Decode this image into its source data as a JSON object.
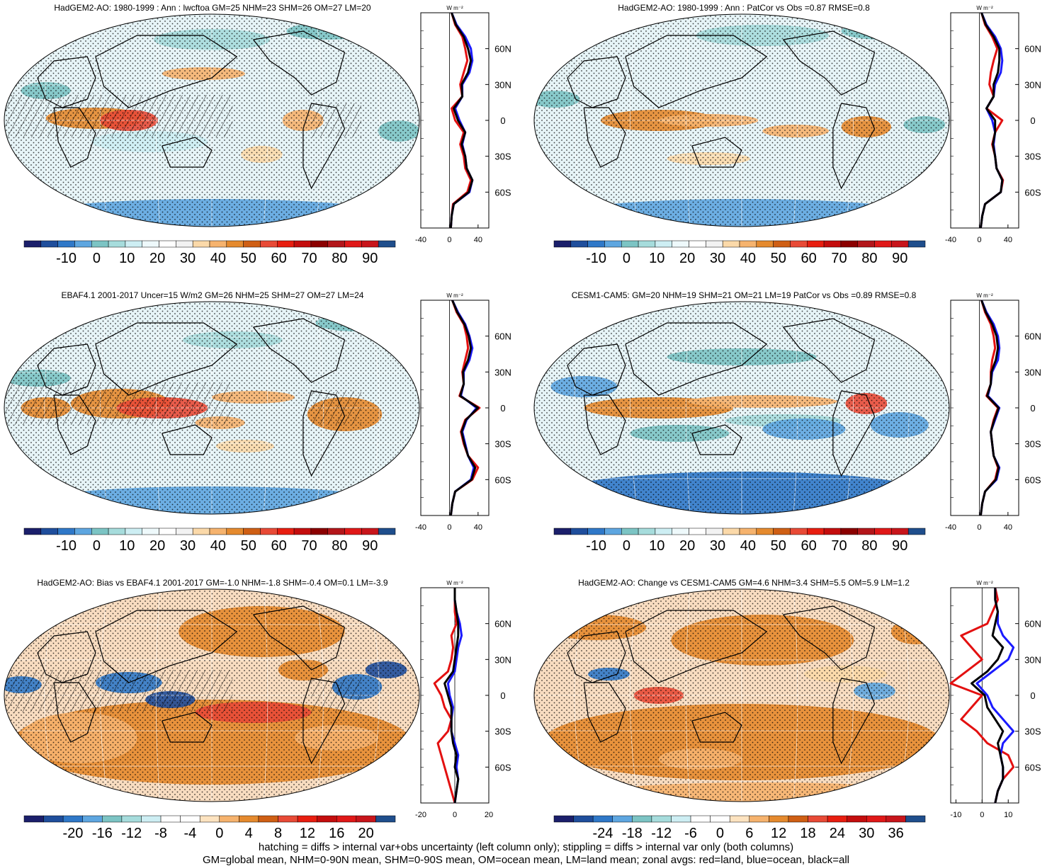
{
  "palette": {
    "main": [
      "#1b1f6b",
      "#1f4e9c",
      "#2f78c8",
      "#5ea6e0",
      "#7cc4c4",
      "#a6dcdc",
      "#cdeef3",
      "#eef9fb",
      "#ffffff",
      "#f2f2f2",
      "#fbd9a9",
      "#f6b36e",
      "#e58a2e",
      "#cf5f14",
      "#e84a36",
      "#e81e10",
      "#c40d0d",
      "#8b0000",
      "#b3161a",
      "#e01818",
      "#c8151b",
      "#1f4e8c"
    ],
    "diff": [
      "#1b1f6b",
      "#1f4e9c",
      "#2f78c8",
      "#5ea6e0",
      "#7cc4c4",
      "#a6dcdc",
      "#cdeef3",
      "#ffffff",
      "#ffffff",
      "#fde3c0",
      "#f6b36e",
      "#e58a2e",
      "#cf5f14",
      "#e84a36",
      "#e81e10",
      "#c40d0d",
      "#e01818",
      "#c8151b",
      "#1f4e8c"
    ]
  },
  "line_colors": {
    "land": "#e31010",
    "ocean": "#1a1aff",
    "all": "#000000"
  },
  "unit_label": "W m⁻²",
  "lat_ticks": [
    "60N",
    "30N",
    "0",
    "30S",
    "60S"
  ],
  "footer": {
    "line1": "hatching = diffs > internal var+obs uncertainty (left column only); stippling = diffs > internal var only (both columns)",
    "line2": "GM=global mean, NHM=0-90N mean, SHM=0-90S mean, OM=ocean mean, LM=land mean; zonal avgs: red=land, blue=ocean, black=all"
  },
  "chart_data": [
    {
      "type": "heatmap",
      "title": "HadGEM2-AO: 1980-1999 : Ann : lwcftoa GM=25 NHM=23 SHM=26 OM=27 LM=20",
      "colorbar_labels": [
        "-10",
        "0",
        "10",
        "20",
        "30",
        "40",
        "50",
        "60",
        "70",
        "80",
        "90"
      ],
      "colorbar_palette": "main",
      "hatching": true,
      "zonal_mean": {
        "xticks": [
          "-40",
          "0",
          "40"
        ],
        "xlim": [
          -40,
          55
        ],
        "ylim": [
          -90,
          90
        ],
        "lat": [
          -90,
          -80,
          -70,
          -60,
          -50,
          -40,
          -30,
          -20,
          -10,
          0,
          10,
          20,
          30,
          40,
          50,
          60,
          70,
          80,
          90
        ],
        "land": [
          2,
          3,
          5,
          25,
          30,
          22,
          20,
          15,
          20,
          8,
          3,
          18,
          15,
          20,
          25,
          22,
          18,
          8,
          3
        ],
        "ocean": [
          2,
          3,
          6,
          28,
          32,
          24,
          22,
          18,
          22,
          14,
          8,
          18,
          18,
          28,
          32,
          30,
          22,
          10,
          3
        ],
        "all": [
          2,
          3,
          6,
          27,
          32,
          24,
          22,
          17,
          22,
          12,
          6,
          18,
          17,
          26,
          30,
          26,
          20,
          9,
          3
        ]
      }
    },
    {
      "type": "heatmap",
      "title": "HadGEM2-AO: 1980-1999 : Ann : PatCor vs Obs =0.87 RMSE=0.8",
      "colorbar_labels": [
        "-10",
        "0",
        "10",
        "20",
        "30",
        "40",
        "50",
        "60",
        "70",
        "80",
        "90"
      ],
      "colorbar_palette": "main",
      "hatching": false,
      "zonal_mean": {
        "xticks": [
          "-40",
          "0",
          "40"
        ],
        "xlim": [
          -40,
          55
        ],
        "ylim": [
          -90,
          90
        ],
        "lat": [
          -90,
          -80,
          -70,
          -60,
          -50,
          -40,
          -30,
          -20,
          -10,
          0,
          10,
          20,
          30,
          40,
          50,
          60,
          70,
          80,
          90
        ],
        "land": [
          2,
          4,
          8,
          30,
          33,
          24,
          22,
          18,
          22,
          32,
          10,
          20,
          14,
          16,
          20,
          25,
          18,
          8,
          3
        ],
        "ocean": [
          2,
          4,
          8,
          30,
          32,
          24,
          22,
          20,
          22,
          18,
          10,
          20,
          22,
          30,
          32,
          30,
          22,
          10,
          3
        ],
        "all": [
          2,
          4,
          8,
          30,
          32,
          24,
          22,
          19,
          22,
          22,
          10,
          20,
          20,
          26,
          28,
          28,
          20,
          9,
          3
        ]
      }
    },
    {
      "type": "heatmap",
      "title": "EBAF4.1 2001-2017 Uncer=15 W/m2 GM=26 NHM=25 SHM=27 OM=27 LM=24",
      "colorbar_labels": [
        "-10",
        "0",
        "10",
        "20",
        "30",
        "40",
        "50",
        "60",
        "70",
        "80",
        "90"
      ],
      "colorbar_palette": "main",
      "hatching": true,
      "zonal_mean": {
        "xticks": [
          "-40",
          "0",
          "40"
        ],
        "xlim": [
          -40,
          55
        ],
        "ylim": [
          -90,
          90
        ],
        "lat": [
          -90,
          -80,
          -70,
          -60,
          -50,
          -40,
          -30,
          -20,
          -10,
          0,
          10,
          20,
          30,
          40,
          50,
          60,
          70,
          80,
          90
        ],
        "land": [
          2,
          4,
          8,
          32,
          40,
          26,
          20,
          16,
          22,
          42,
          14,
          20,
          18,
          22,
          26,
          24,
          20,
          10,
          4
        ],
        "ocean": [
          2,
          4,
          8,
          30,
          34,
          26,
          22,
          18,
          24,
          38,
          16,
          20,
          20,
          28,
          32,
          28,
          22,
          12,
          4
        ],
        "all": [
          2,
          4,
          8,
          31,
          36,
          26,
          21,
          17,
          23,
          40,
          15,
          20,
          19,
          26,
          30,
          27,
          21,
          11,
          4
        ]
      }
    },
    {
      "type": "heatmap",
      "title": "CESM1-CAM5: GM=20 NHM=19 SHM=21 OM=21 LM=19 PatCor vs Obs =0.89 RMSE=0.8",
      "colorbar_labels": [
        "-10",
        "0",
        "10",
        "20",
        "30",
        "40",
        "50",
        "60",
        "70",
        "80",
        "90"
      ],
      "colorbar_palette": "main",
      "hatching": false,
      "zonal_mean": {
        "xticks": [
          "-40",
          "0",
          "40"
        ],
        "xlim": [
          -40,
          55
        ],
        "ylim": [
          -90,
          90
        ],
        "lat": [
          -90,
          -80,
          -70,
          -60,
          -50,
          -40,
          -30,
          -20,
          -10,
          0,
          10,
          20,
          30,
          40,
          50,
          60,
          70,
          80,
          90
        ],
        "land": [
          2,
          4,
          8,
          22,
          26,
          20,
          18,
          16,
          20,
          26,
          10,
          16,
          16,
          18,
          22,
          20,
          16,
          8,
          3
        ],
        "ocean": [
          2,
          4,
          8,
          24,
          28,
          20,
          18,
          16,
          22,
          28,
          12,
          16,
          18,
          26,
          28,
          26,
          20,
          10,
          3
        ],
        "all": [
          2,
          4,
          8,
          23,
          27,
          20,
          18,
          16,
          21,
          27,
          11,
          16,
          17,
          23,
          26,
          24,
          18,
          9,
          3
        ]
      }
    },
    {
      "type": "heatmap",
      "title": "HadGEM2-AO: Bias vs EBAF4.1 2001-2017 GM=-1.0 NHM=-1.8 SHM=-0.4 OM=0.1 LM=-3.9",
      "colorbar_labels": [
        "-20",
        "-16",
        "-12",
        "-8",
        "-4",
        "0",
        "4",
        "8",
        "12",
        "16",
        "20"
      ],
      "colorbar_palette": "diff",
      "hatching": true,
      "zonal_mean": {
        "xticks": [
          "-20",
          "0",
          "20"
        ],
        "xlim": [
          -20,
          20
        ],
        "ylim": [
          -90,
          90
        ],
        "lat": [
          -90,
          -80,
          -70,
          -60,
          -50,
          -40,
          -30,
          -20,
          -10,
          0,
          10,
          20,
          30,
          40,
          50,
          60,
          70,
          80,
          90
        ],
        "land": [
          0,
          -2,
          -4,
          -6,
          -8,
          -10,
          -4,
          -2,
          -6,
          -8,
          -12,
          -4,
          -2,
          -1,
          -2,
          1,
          0,
          0,
          0
        ],
        "ocean": [
          0,
          1,
          2,
          1,
          2,
          0,
          -2,
          -2,
          -1,
          -3,
          -4,
          0,
          1,
          2,
          4,
          3,
          1,
          0,
          0
        ],
        "all": [
          0,
          1,
          2,
          0,
          1,
          -1,
          -2,
          -2,
          -2,
          -4,
          -6,
          -1,
          0,
          1,
          2,
          2,
          1,
          0,
          0
        ]
      }
    },
    {
      "type": "heatmap",
      "title": "HadGEM2-AO: Change vs CESM1-CAM5 GM=4.6 NHM=3.4 SHM=5.5 OM=5.9 LM=1.2",
      "colorbar_labels": [
        "-24",
        "-18",
        "-12",
        "-6",
        "0",
        "6",
        "12",
        "18",
        "24",
        "30",
        "36"
      ],
      "colorbar_palette": "diff",
      "hatching": false,
      "zonal_mean": {
        "xticks": [
          "-10",
          "0",
          "10"
        ],
        "xlim": [
          -12,
          14
        ],
        "ylim": [
          -90,
          90
        ],
        "lat": [
          -90,
          -80,
          -70,
          -60,
          -50,
          -40,
          -30,
          -20,
          -10,
          0,
          10,
          20,
          30,
          40,
          50,
          60,
          70,
          80,
          90
        ],
        "land": [
          5,
          6,
          8,
          12,
          10,
          2,
          -2,
          -8,
          -4,
          0,
          -12,
          -6,
          0,
          -4,
          -8,
          2,
          4,
          6,
          5
        ],
        "ocean": [
          5,
          6,
          8,
          8,
          7,
          8,
          12,
          8,
          4,
          2,
          -2,
          4,
          10,
          12,
          8,
          6,
          6,
          5,
          5
        ],
        "all": [
          5,
          6,
          8,
          8,
          7,
          6,
          8,
          5,
          2,
          1,
          -4,
          2,
          6,
          8,
          4,
          5,
          6,
          5,
          5
        ]
      }
    }
  ]
}
